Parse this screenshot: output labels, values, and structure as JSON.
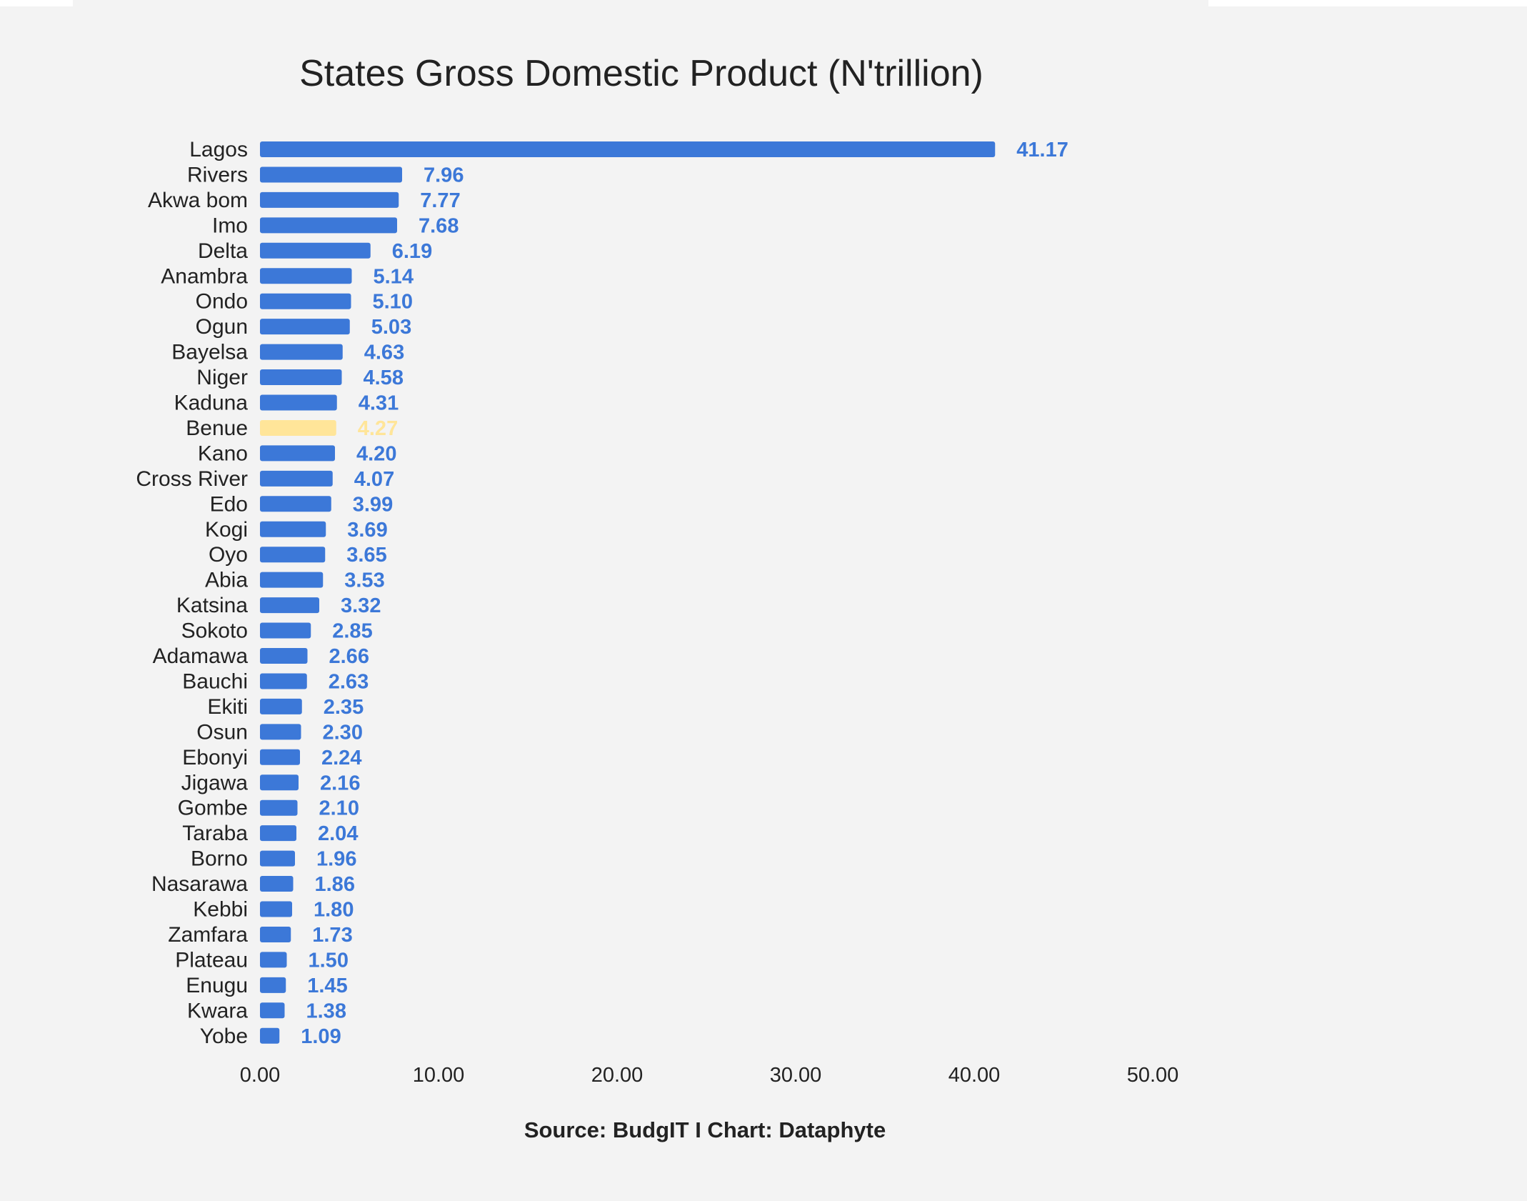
{
  "chart_data": {
    "type": "bar",
    "orientation": "horizontal",
    "title": "States Gross Domestic Product (N'trillion)",
    "xlabel": "",
    "ylabel": "",
    "source_note": "Source: BudgIT I Chart: Dataphyte",
    "xlim": [
      0,
      50
    ],
    "x_ticks": [
      "0.00",
      "10.00",
      "20.00",
      "30.00",
      "40.00",
      "50.00"
    ],
    "grid": false,
    "legend": "none",
    "categories": [
      "Lagos",
      "Rivers",
      "Akwa bom",
      "Imo",
      "Delta",
      "Anambra",
      "Ondo",
      "Ogun",
      "Bayelsa",
      "Niger",
      "Kaduna",
      "Benue",
      "Kano",
      "Cross River",
      "Edo",
      "Kogi",
      "Oyo",
      "Abia",
      "Katsina",
      "Sokoto",
      "Adamawa",
      "Bauchi",
      "Ekiti",
      "Osun",
      "Ebonyi",
      "Jigawa",
      "Gombe",
      "Taraba",
      "Borno",
      "Nasarawa",
      "Kebbi",
      "Zamfara",
      "Plateau",
      "Enugu",
      "Kwara",
      "Yobe"
    ],
    "values": [
      41.17,
      7.96,
      7.77,
      7.68,
      6.19,
      5.14,
      5.1,
      5.03,
      4.63,
      4.58,
      4.31,
      4.27,
      4.2,
      4.07,
      3.99,
      3.69,
      3.65,
      3.53,
      3.32,
      2.85,
      2.66,
      2.63,
      2.35,
      2.3,
      2.24,
      2.16,
      2.1,
      2.04,
      1.96,
      1.86,
      1.8,
      1.73,
      1.5,
      1.45,
      1.38,
      1.09
    ],
    "value_labels": [
      "41.17",
      "7.96",
      "7.77",
      "7.68",
      "6.19",
      "5.14",
      "5.10",
      "5.03",
      "4.63",
      "4.58",
      "4.31",
      "4.27",
      "4.20",
      "4.07",
      "3.99",
      "3.69",
      "3.65",
      "3.53",
      "3.32",
      "2.85",
      "2.66",
      "2.63",
      "2.35",
      "2.30",
      "2.24",
      "2.16",
      "2.10",
      "2.04",
      "1.96",
      "1.86",
      "1.80",
      "1.73",
      "1.50",
      "1.45",
      "1.38",
      "1.09"
    ],
    "highlight_category": "Benue",
    "colors": {
      "bar": "#3c78d8",
      "highlight_bar": "#ffe599",
      "value_label": "#3c78d8",
      "highlight_label": "#ffe599",
      "background": "#f3f3f3",
      "text": "#222222"
    }
  }
}
